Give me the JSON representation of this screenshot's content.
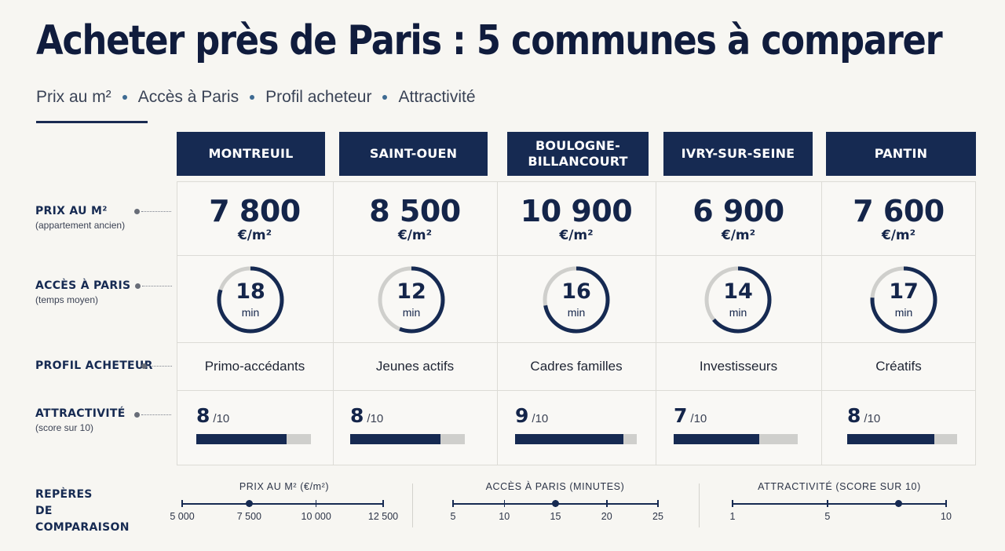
{
  "title": "Acheter près de Paris : 5 communes à comparer",
  "subtitle": [
    "Prix au m²",
    "Accès à Paris",
    "Profil acheteur",
    "Attractivité"
  ],
  "row_labels": {
    "price": {
      "main": "PRIX AU M²",
      "sub": "(appartement ancien)"
    },
    "access": {
      "main": "ACCÈS À PARIS",
      "sub": "(temps moyen)"
    },
    "profile": {
      "main": "PROFIL ACHETEUR"
    },
    "attract": {
      "main": "ATTRACTIVITÉ",
      "sub": "(score sur 10)"
    }
  },
  "price_unit": "€/m²",
  "time_unit": "min",
  "score_suffix": "/10",
  "cities": [
    {
      "name": "MONTREUIL",
      "price": "7 800",
      "minutes": "18",
      "profile": "Primo-accédants",
      "score": "8",
      "score_value": 8
    },
    {
      "name": "SAINT-OUEN",
      "price": "8 500",
      "minutes": "12",
      "profile": "Jeunes actifs",
      "score": "8",
      "score_value": 8
    },
    {
      "name": "BOULOGNE-BILLANCOURT",
      "price": "10 900",
      "minutes": "16",
      "profile": "Cadres familles",
      "score": "9",
      "score_value": 9
    },
    {
      "name": "IVRY-SUR-SEINE",
      "price": "6 900",
      "minutes": "14",
      "profile": "Investisseurs",
      "score": "7",
      "score_value": 7
    },
    {
      "name": "PANTIN",
      "price": "7 600",
      "minutes": "17",
      "profile": "Créatifs",
      "score": "8",
      "score_value": 8
    }
  ],
  "reperes": {
    "label": "REPÈRES DE COMPARAISON",
    "scales": [
      {
        "title": "PRIX AU M² (€/m²)",
        "ticks": [
          "5 000",
          "7 500",
          "10 000",
          "12 500"
        ],
        "min": 5000,
        "max": 12500,
        "marker": 7500
      },
      {
        "title": "ACCÈS À PARIS (MINUTES)",
        "ticks": [
          "5",
          "10",
          "15",
          "20",
          "25"
        ],
        "min": 5,
        "max": 25,
        "marker": 15
      },
      {
        "title": "ATTRACTIVITÉ (SCORE SUR 10)",
        "ticks": [
          "1",
          "5",
          "10"
        ],
        "tick_values": [
          1,
          5,
          10
        ],
        "min": 1,
        "max": 10,
        "marker": 8
      }
    ]
  },
  "colors": {
    "navy": "#162a52",
    "track": "#cfcfcc",
    "ring_track": "#cfcfcc",
    "accent_dot": "#3d6a92"
  }
}
